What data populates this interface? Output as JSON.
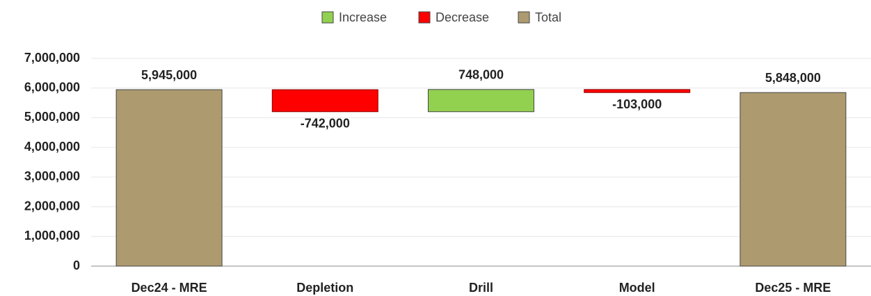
{
  "chart_data": {
    "type": "waterfall",
    "legend": [
      {
        "name": "Increase",
        "color": "#92d050"
      },
      {
        "name": "Decrease",
        "color": "#ff0000"
      },
      {
        "name": "Total",
        "color": "#ad9a6e"
      }
    ],
    "categories": [
      "Dec24 - MRE",
      "Depletion",
      "Drill",
      "Model",
      "Dec25 - MRE"
    ],
    "measure": [
      "total",
      "relative",
      "relative",
      "relative",
      "total"
    ],
    "values": [
      5945000,
      -742000,
      748000,
      -103000,
      5848000
    ],
    "value_labels": [
      "5,945,000",
      "-742,000",
      "748,000",
      "-103,000",
      "5,848,000"
    ],
    "ylim": [
      0,
      7000000
    ],
    "yticks": [
      0,
      {
        "value": 1000000,
        "label": "1,000,000"
      },
      {
        "value": 2000000,
        "label": "2,000,000"
      },
      {
        "value": 3000000,
        "label": "3,000,000"
      },
      {
        "value": 4000000,
        "label": "4,000,000"
      },
      {
        "value": 5000000,
        "label": "5,000,000"
      },
      {
        "value": 6000000,
        "label": "6,000,000"
      },
      {
        "value": 7000000,
        "label": "7,000,000"
      }
    ],
    "grid": true
  }
}
